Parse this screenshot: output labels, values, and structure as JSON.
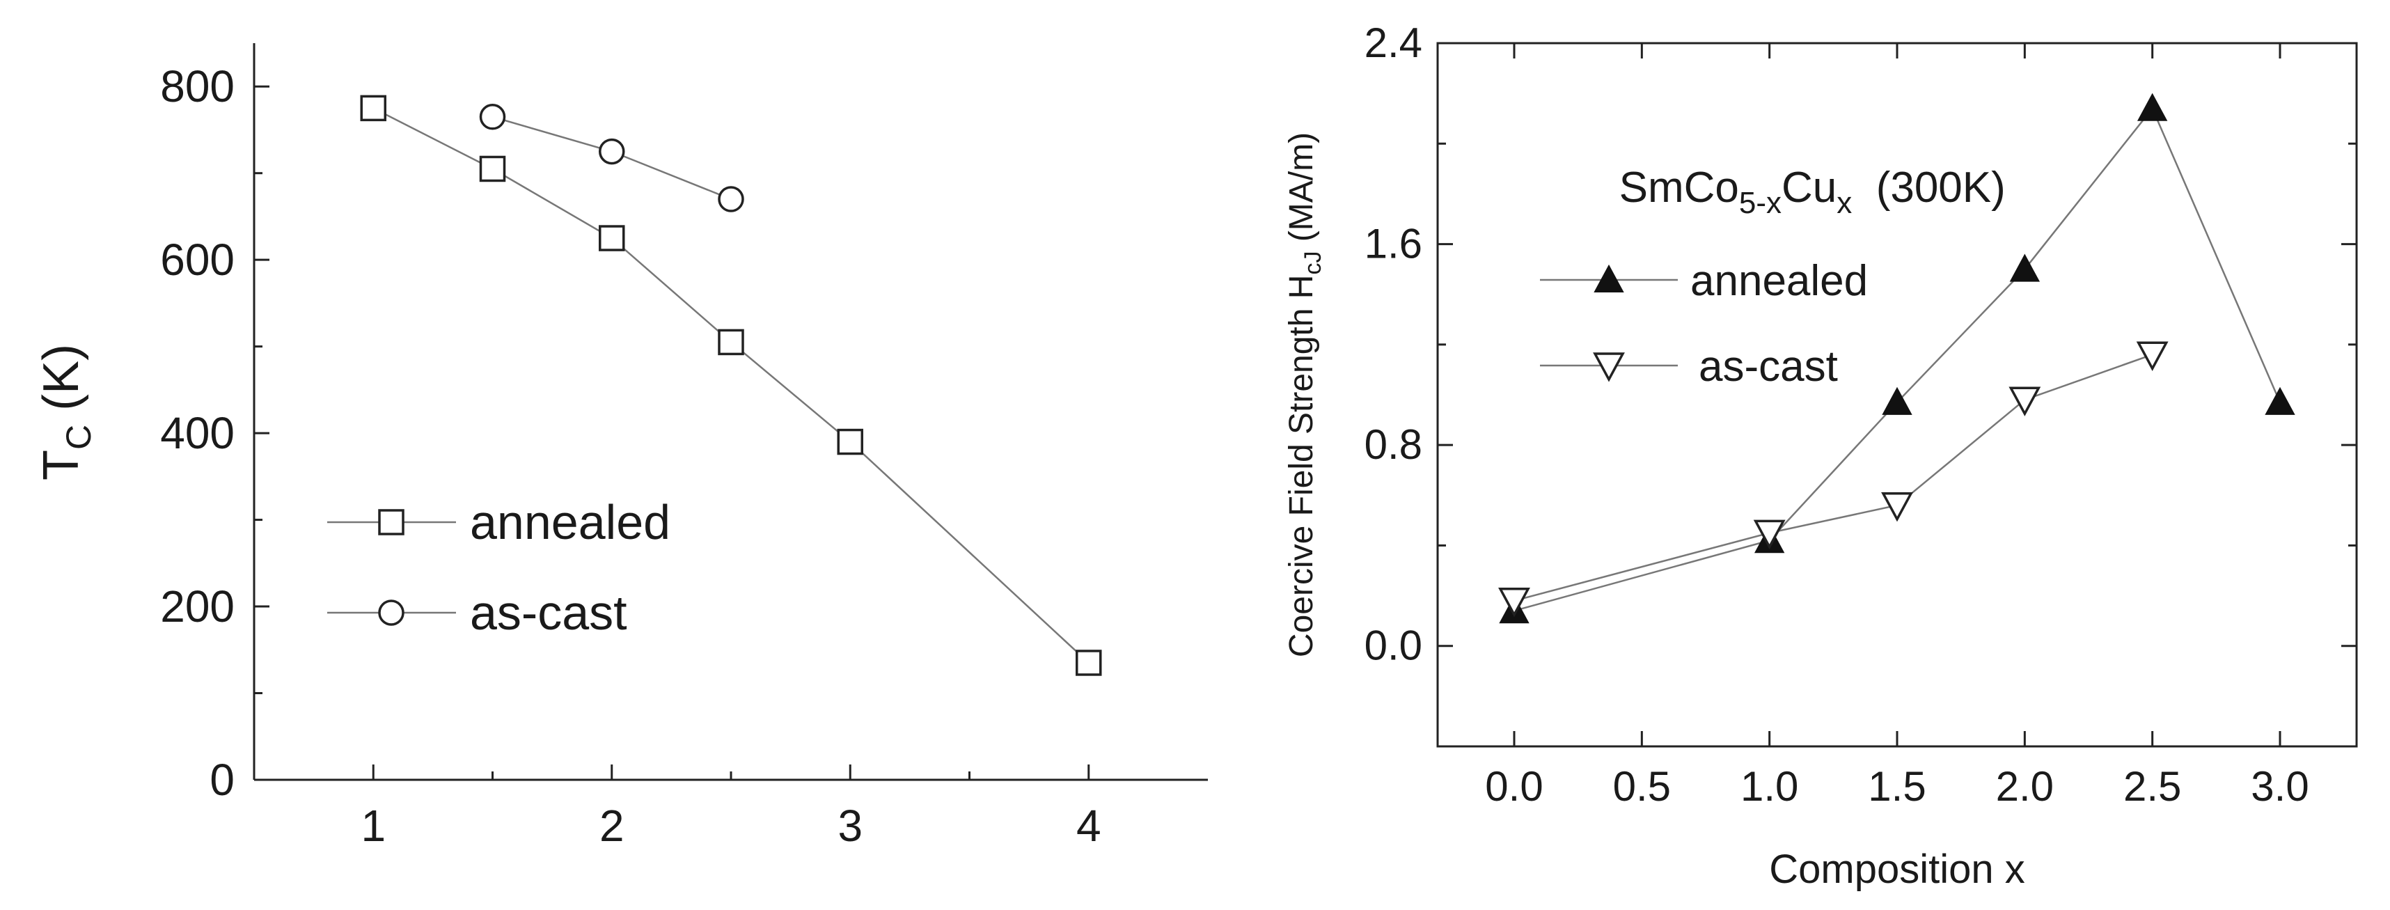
{
  "chart_data": [
    {
      "type": "line",
      "xlabel": "",
      "ylabel": "T",
      "ylabel_sub": "C",
      "ylabel_unit": " (K)",
      "xlim": [
        0.5,
        4.5
      ],
      "ylim": [
        0,
        850
      ],
      "xticks": [
        "1",
        "2",
        "3",
        "4"
      ],
      "yticks": [
        "0",
        "200",
        "400",
        "600",
        "800"
      ],
      "legend_position": "lower-left",
      "grid": false,
      "series": [
        {
          "name": "annealed",
          "marker": "square-open",
          "x": [
            1,
            1.5,
            2,
            2.5,
            3,
            4
          ],
          "y": [
            775,
            705,
            625,
            505,
            390,
            135
          ]
        },
        {
          "name": "as-cast",
          "marker": "circle-open",
          "x": [
            1.5,
            2,
            2.5
          ],
          "y": [
            765,
            725,
            670
          ]
        }
      ]
    },
    {
      "type": "line",
      "xlabel": "Composition x",
      "ylabel": "Coercive Field Strength H",
      "ylabel_sub": "cJ",
      "ylabel_unit": " (MA/m)",
      "annotation": {
        "base": "SmCo",
        "sub1": "5-x",
        "mid": "Cu",
        "sub2": "x",
        "tail": "  (300K)"
      },
      "xlim": [
        -0.3,
        3.3
      ],
      "ylim": [
        -0.4,
        2.4
      ],
      "xticks": [
        "0.0",
        "0.5",
        "1.0",
        "1.5",
        "2.0",
        "2.5",
        "3.0"
      ],
      "yticks": [
        "0.0",
        "0.8",
        "1.6",
        "2.4"
      ],
      "legend_position": "upper-left",
      "grid": false,
      "series": [
        {
          "name": "annealed",
          "marker": "triangle-up-filled",
          "x": [
            0,
            1,
            1.5,
            2,
            2.5,
            3
          ],
          "y": [
            0.14,
            0.42,
            0.97,
            1.5,
            2.14,
            0.97
          ]
        },
        {
          "name": "as-cast",
          "marker": "triangle-down-open",
          "x": [
            0,
            1,
            1.5,
            2,
            2.5
          ],
          "y": [
            0.18,
            0.45,
            0.56,
            0.98,
            1.16
          ]
        }
      ]
    }
  ]
}
